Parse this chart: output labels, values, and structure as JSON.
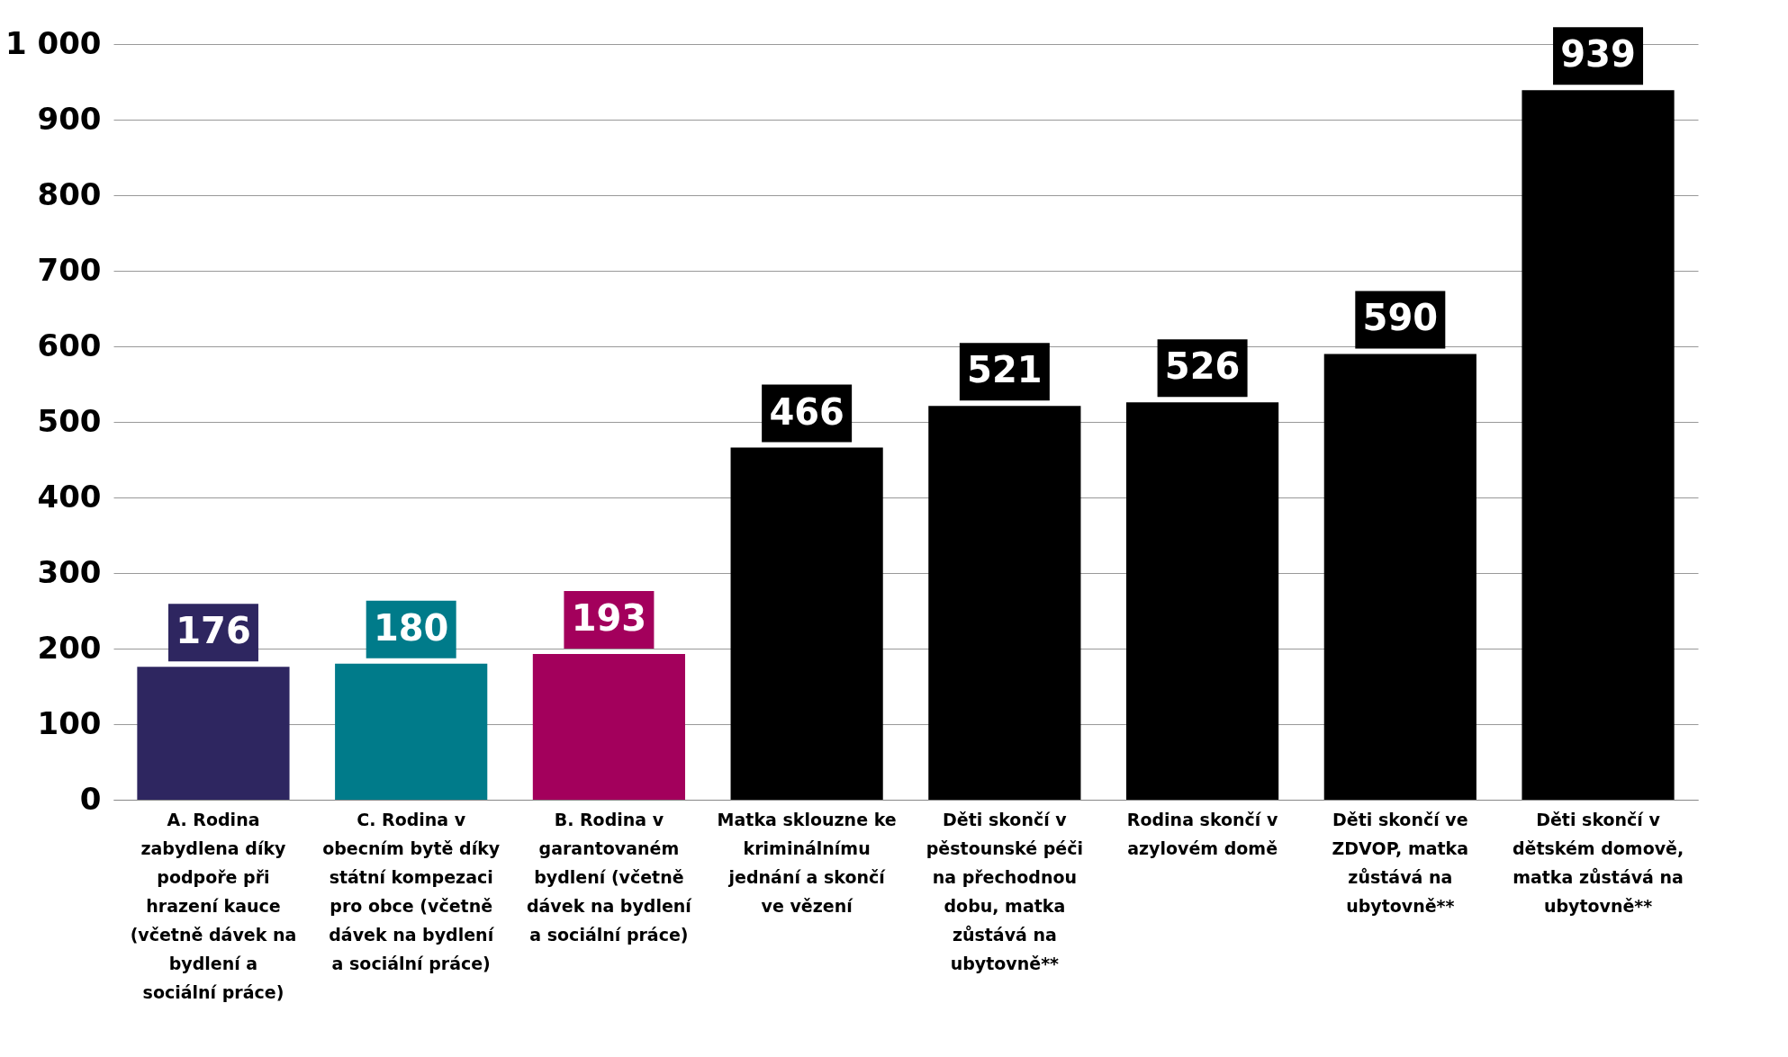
{
  "chart_data": {
    "type": "bar",
    "categories": [
      "A. Rodina zabydlena díky podpoře při hrazení kauce (včetně dávek na bydlení a sociální práce)",
      "C. Rodina v obecním bytě díky státní kompezaci pro obce (včetně dávek na bydlení a sociální práce)",
      "B. Rodina v garantovaném bydlení (včetně dávek na bydlení a sociální práce)",
      "Matka sklouzne ke kriminálnímu jednání a skončí ve vězení",
      "Děti skončí v pěstounské péči na přechodnou dobu, matka zůstává na ubytovně**",
      "Rodina skončí v azylovém domě",
      "Děti skončí ve ZDVOP, matka zůstává na ubytovně**",
      "Děti skončí v dětském domově, matka zůstává na ubytovně**"
    ],
    "values": [
      176,
      180,
      193,
      466,
      521,
      526,
      590,
      939
    ],
    "colors": [
      "#2e2660",
      "#007b8a",
      "#a3005c",
      "#000000",
      "#000000",
      "#000000",
      "#000000",
      "#000000"
    ],
    "ylim": [
      0,
      1000
    ],
    "yticks": [
      0,
      100,
      200,
      300,
      400,
      500,
      600,
      700,
      800,
      900,
      {
        "value": 1000,
        "label": "1 000"
      }
    ],
    "grid": "y",
    "data_labels": true
  }
}
